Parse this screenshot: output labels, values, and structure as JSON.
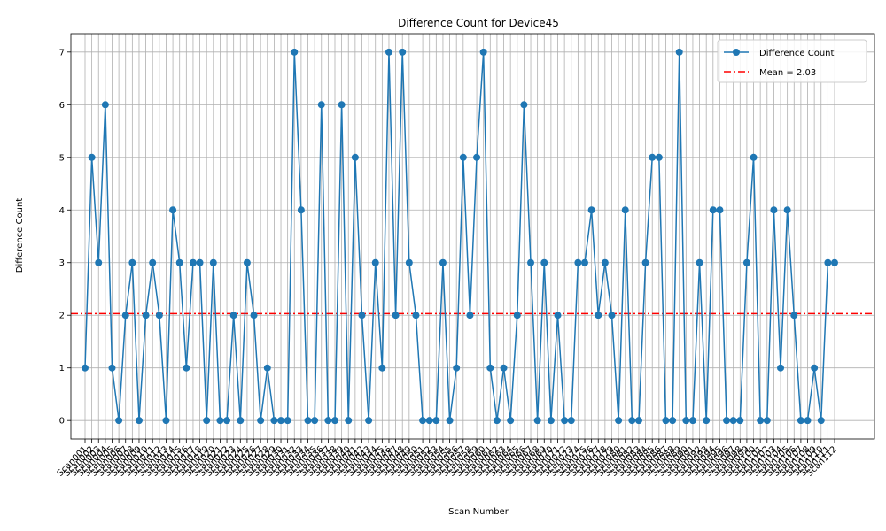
{
  "chart_data": {
    "type": "line",
    "title": "Difference Count for Device45",
    "xlabel": "Scan Number",
    "ylabel": "Difference Count",
    "yticks": [
      0,
      1,
      2,
      3,
      4,
      5,
      6,
      7
    ],
    "ylim": [
      -0.35,
      7.35
    ],
    "grid": true,
    "legend_placement": "top-right",
    "series": [
      {
        "name": "Difference Count",
        "color": "#1f77b4",
        "marker": "circle",
        "values": [
          1,
          5,
          3,
          6,
          1,
          0,
          2,
          3,
          0,
          2,
          3,
          2,
          0,
          4,
          3,
          1,
          3,
          3,
          0,
          3,
          0,
          0,
          2,
          0,
          3,
          2,
          0,
          1,
          0,
          0,
          0,
          7,
          4,
          0,
          0,
          6,
          0,
          0,
          6,
          0,
          5,
          2,
          0,
          3,
          1,
          7,
          2,
          7,
          3,
          2,
          0,
          0,
          0,
          3,
          0,
          1,
          5,
          2,
          5,
          7,
          1,
          0,
          1,
          0,
          2,
          6,
          3,
          0,
          3,
          0,
          2,
          0,
          0,
          3,
          3,
          4,
          2,
          3,
          2,
          0,
          4,
          0,
          0,
          3,
          5,
          5,
          0,
          0,
          7,
          0,
          0,
          3,
          0,
          4,
          4,
          0,
          0,
          0,
          3,
          5,
          0,
          0,
          4,
          1,
          4,
          2,
          0,
          0,
          1,
          0,
          3,
          3
        ]
      }
    ],
    "mean_line": {
      "label": "Mean = 2.03",
      "value": 2.03,
      "color": "#ff0000",
      "style": "dashdot"
    },
    "categories": [
      "Scan001",
      "Scan002",
      "Scan003",
      "Scan004",
      "Scan005",
      "Scan006",
      "Scan007",
      "Scan008",
      "Scan009",
      "Scan010",
      "Scan011",
      "Scan012",
      "Scan013",
      "Scan014",
      "Scan015",
      "Scan016",
      "Scan017",
      "Scan018",
      "Scan019",
      "Scan020",
      "Scan021",
      "Scan022",
      "Scan023",
      "Scan024",
      "Scan025",
      "Scan026",
      "Scan027",
      "Scan028",
      "Scan029",
      "Scan030",
      "Scan031",
      "Scan032",
      "Scan033",
      "Scan034",
      "Scan035",
      "Scan036",
      "Scan037",
      "Scan038",
      "Scan039",
      "Scan040",
      "Scan041",
      "Scan042",
      "Scan043",
      "Scan044",
      "Scan045",
      "Scan046",
      "Scan047",
      "Scan048",
      "Scan049",
      "Scan050",
      "Scan051",
      "Scan052",
      "Scan053",
      "Scan054",
      "Scan055",
      "Scan056",
      "Scan057",
      "Scan058",
      "Scan059",
      "Scan060",
      "Scan061",
      "Scan062",
      "Scan063",
      "Scan064",
      "Scan065",
      "Scan066",
      "Scan067",
      "Scan068",
      "Scan069",
      "Scan070",
      "Scan071",
      "Scan072",
      "Scan073",
      "Scan074",
      "Scan075",
      "Scan076",
      "Scan077",
      "Scan078",
      "Scan079",
      "Scan080",
      "Scan081",
      "Scan082",
      "Scan083",
      "Scan084",
      "Scan085",
      "Scan086",
      "Scan087",
      "Scan088",
      "Scan089",
      "Scan090",
      "Scan091",
      "Scan092",
      "Scan093",
      "Scan094",
      "Scan095",
      "Scan096",
      "Scan097",
      "Scan098",
      "Scan099",
      "Scan100",
      "Scan101",
      "Scan102",
      "Scan103",
      "Scan104",
      "Scan105",
      "Scan106",
      "Scan107",
      "Scan108",
      "Scan109",
      "Scan110",
      "Scan111",
      "Scan112"
    ]
  }
}
